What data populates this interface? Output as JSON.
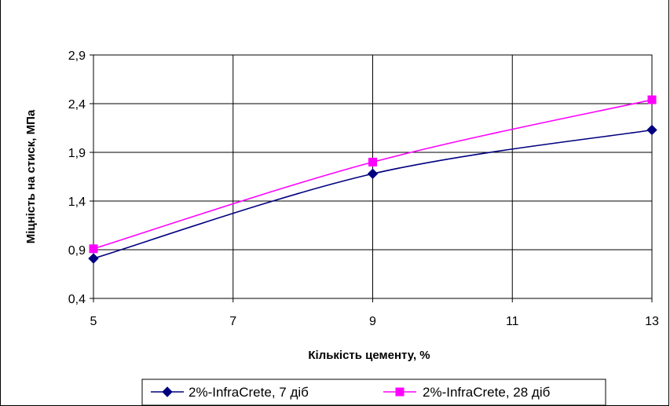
{
  "chart_data": {
    "type": "line",
    "xlabel": "Кількість цементу, %",
    "ylabel": "Міцність на стиск, МПа",
    "xlim": [
      5,
      13
    ],
    "ylim": [
      0.4,
      2.9
    ],
    "x_ticks": [
      "5",
      "7",
      "9",
      "11",
      "13"
    ],
    "y_ticks": [
      "0,4",
      "0,9",
      "1,4",
      "1,9",
      "2,4",
      "2,9"
    ],
    "grid": true,
    "legend_position": "bottom",
    "series": [
      {
        "name": "2%-InfraCrete, 7 діб",
        "color": "#000080",
        "marker": "diamond",
        "x": [
          5,
          9,
          13
        ],
        "values": [
          0.81,
          1.68,
          2.13
        ]
      },
      {
        "name": "2%-InfraCrete, 28 діб",
        "color": "#FF00FF",
        "marker": "square",
        "x": [
          5,
          9,
          13
        ],
        "values": [
          0.91,
          1.8,
          2.44
        ]
      }
    ]
  }
}
